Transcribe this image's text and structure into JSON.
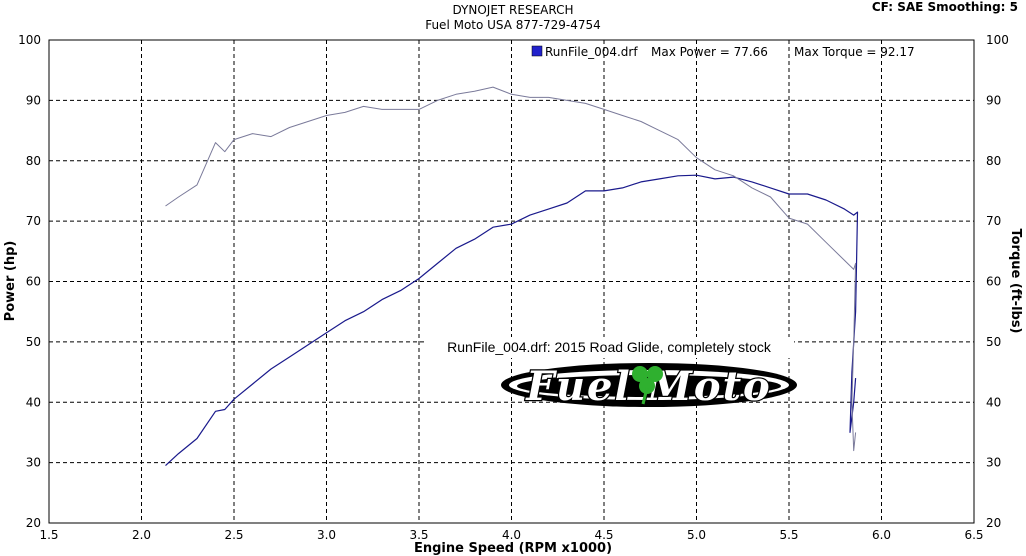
{
  "header": {
    "title": "DYNOJET RESEARCH",
    "subtitle": "Fuel Moto USA 877-729-4754",
    "settings": "CF: SAE  Smoothing: 5"
  },
  "legend": {
    "run": "RunFile_004.drf",
    "max_power": "Max Power = 77.66",
    "max_torque": "Max Torque = 92.17",
    "swatch_color": "#2222cc"
  },
  "annotation": "RunFile_004.drf: 2015 Road Glide, completely stock",
  "logo": {
    "text": "Fuel Moto"
  },
  "chart_data": {
    "type": "line",
    "xlabel": "Engine Speed (RPM x1000)",
    "ylabel": "Power (hp)",
    "y2label": "Torque (ft-lbs)",
    "xlim": [
      1.5,
      6.5
    ],
    "ylim": [
      20,
      100
    ],
    "y2lim": [
      20,
      100
    ],
    "x_ticks": [
      "1.5",
      "2.0",
      "2.5",
      "3.0",
      "3.5",
      "4.0",
      "4.5",
      "5.0",
      "5.5",
      "6.0",
      "6.5"
    ],
    "y_ticks": [
      "20",
      "30",
      "40",
      "50",
      "60",
      "70",
      "80",
      "90",
      "100"
    ],
    "y2_ticks": [
      "20",
      "30",
      "40",
      "50",
      "60",
      "70",
      "80",
      "90",
      "100"
    ],
    "grid": true,
    "series": [
      {
        "name": "Power (hp)",
        "color": "#1a1a8c",
        "x": [
          2.13,
          2.2,
          2.3,
          2.4,
          2.45,
          2.5,
          2.6,
          2.7,
          2.8,
          2.9,
          3.0,
          3.1,
          3.2,
          3.3,
          3.4,
          3.5,
          3.6,
          3.7,
          3.8,
          3.9,
          4.0,
          4.1,
          4.2,
          4.3,
          4.4,
          4.5,
          4.6,
          4.7,
          4.8,
          4.9,
          5.0,
          5.1,
          5.2,
          5.3,
          5.4,
          5.5,
          5.6,
          5.7,
          5.8,
          5.85,
          5.87,
          5.86,
          5.84,
          5.83,
          5.85,
          5.86
        ],
        "values": [
          29.5,
          31.5,
          34.0,
          38.5,
          38.8,
          40.5,
          43.0,
          45.5,
          47.5,
          49.5,
          51.5,
          53.5,
          55.0,
          57.0,
          58.5,
          60.5,
          63.0,
          65.5,
          67.0,
          69.0,
          69.5,
          71.0,
          72.0,
          73.0,
          75.0,
          75.0,
          75.5,
          76.5,
          77.0,
          77.5,
          77.6,
          77.0,
          77.3,
          76.5,
          75.5,
          74.5,
          74.5,
          73.5,
          72.0,
          71.0,
          71.5,
          55.0,
          45.0,
          35.0,
          40.0,
          44.0
        ]
      },
      {
        "name": "Torque (ft-lbs)",
        "color": "#7a7a9a",
        "x": [
          2.13,
          2.2,
          2.3,
          2.4,
          2.45,
          2.5,
          2.6,
          2.7,
          2.8,
          2.9,
          3.0,
          3.1,
          3.2,
          3.3,
          3.4,
          3.5,
          3.6,
          3.7,
          3.8,
          3.9,
          4.0,
          4.1,
          4.2,
          4.3,
          4.4,
          4.5,
          4.6,
          4.7,
          4.8,
          4.9,
          5.0,
          5.1,
          5.2,
          5.3,
          5.4,
          5.5,
          5.6,
          5.7,
          5.8,
          5.85,
          5.86,
          5.85,
          5.84,
          5.85,
          5.86
        ],
        "values": [
          72.5,
          74.0,
          76.0,
          83.0,
          81.5,
          83.5,
          84.5,
          84.0,
          85.5,
          86.5,
          87.5,
          88.0,
          89.0,
          88.5,
          88.5,
          88.5,
          90.0,
          91.0,
          91.5,
          92.2,
          91.0,
          90.5,
          90.5,
          90.0,
          89.5,
          88.5,
          87.5,
          86.5,
          85.0,
          83.5,
          80.5,
          78.5,
          77.5,
          75.5,
          74.0,
          70.5,
          69.5,
          66.5,
          63.5,
          62.0,
          63.0,
          50.0,
          40.0,
          32.0,
          35.0
        ]
      }
    ]
  }
}
